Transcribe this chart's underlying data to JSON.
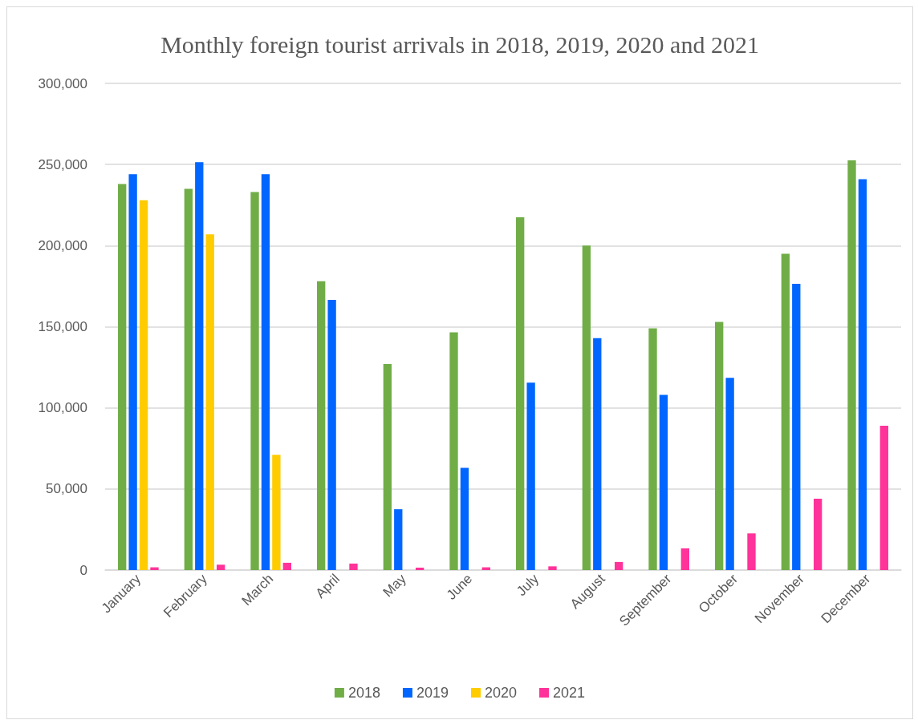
{
  "chart_data": {
    "type": "bar",
    "title": "Monthly foreign tourist arrivals in 2018, 2019, 2020 and 2021",
    "categories": [
      "January",
      "February",
      "March",
      "April",
      "May",
      "June",
      "July",
      "August",
      "September",
      "October",
      "November",
      "December"
    ],
    "series": [
      {
        "name": "2018",
        "color": "#70ad47",
        "values": [
          238000,
          235000,
          233000,
          178000,
          127000,
          146500,
          217500,
          200000,
          149000,
          153000,
          195000,
          252500
        ]
      },
      {
        "name": "2019",
        "color": "#0066ff",
        "values": [
          244000,
          251500,
          244000,
          166500,
          37500,
          63000,
          115500,
          143000,
          108000,
          118500,
          176500,
          241000
        ]
      },
      {
        "name": "2020",
        "color": "#ffcc00",
        "values": [
          228000,
          207000,
          71000,
          null,
          null,
          null,
          null,
          null,
          null,
          null,
          null,
          null
        ]
      },
      {
        "name": "2021",
        "color": "#ff3399",
        "values": [
          1700,
          3300,
          4500,
          4000,
          1500,
          1700,
          2300,
          5000,
          13400,
          22600,
          44000,
          89000
        ]
      }
    ],
    "ylim": [
      0,
      300000
    ],
    "yticks": [
      0,
      {
        "value": 50000,
        "label": "50,000"
      },
      {
        "value": 100000,
        "label": "100,000"
      },
      {
        "value": 150000,
        "label": "150,000"
      },
      {
        "value": 200000,
        "label": "200,000"
      },
      {
        "value": 250000,
        "label": "250,000"
      },
      {
        "value": 300000,
        "label": "300,000"
      }
    ],
    "grid": "y",
    "legend": "bottom"
  }
}
